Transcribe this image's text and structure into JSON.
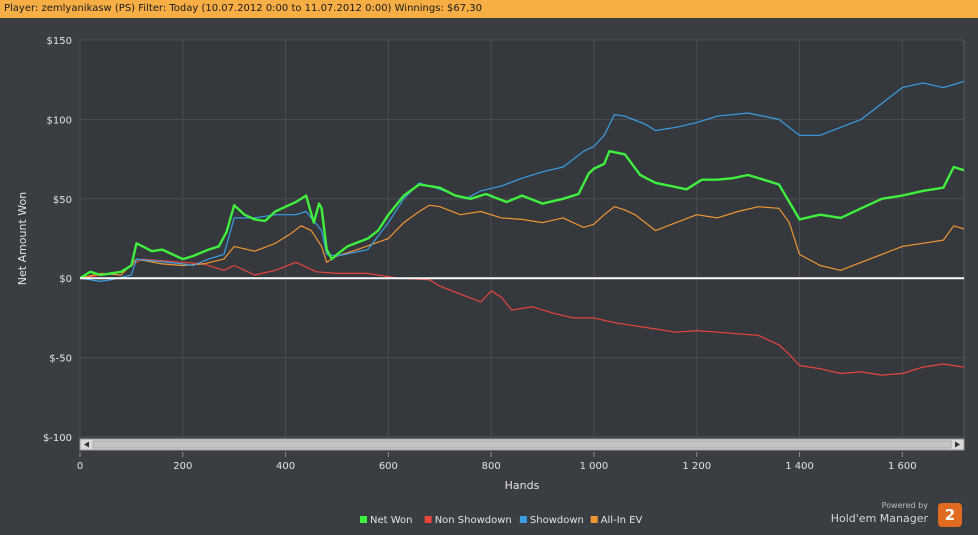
{
  "header": {
    "title": "Player: zemlyanikasw (PS) Filter: Today (10.07.2012 0:00 to 11.07.2012 0:00) Winnings: $67,30"
  },
  "branding": {
    "powered_by": "Powered by",
    "product": "Hold'em Manager",
    "badge": "2"
  },
  "colors": {
    "background": "#3a3d41",
    "plot_background": "#35383c",
    "grid": "#4a4e53",
    "zero_line": "#ffffff",
    "title_bar": "#f6ae45"
  },
  "chart_data": {
    "type": "line",
    "xlabel": "Hands",
    "ylabel": "Net Amount Won",
    "xlim": [
      0,
      1720
    ],
    "ylim": [
      -100,
      150
    ],
    "x_ticks": [
      0,
      200,
      400,
      600,
      800,
      1000,
      1200,
      1400,
      1600
    ],
    "x_tick_labels": [
      "0",
      "200",
      "400",
      "600",
      "800",
      "1 000",
      "1 200",
      "1 400",
      "1 600"
    ],
    "y_ticks": [
      150,
      100,
      50,
      0,
      -50,
      -100
    ],
    "y_tick_labels": [
      "$150",
      "$100",
      "$50",
      "$0",
      "$-50",
      "$-100"
    ],
    "grid": true,
    "legend_position": "bottom-center",
    "series": [
      {
        "name": "Net Won",
        "color": "#3ff03f",
        "x": [
          0,
          20,
          40,
          60,
          80,
          100,
          110,
          140,
          160,
          200,
          220,
          250,
          270,
          285,
          300,
          320,
          340,
          360,
          380,
          400,
          420,
          440,
          455,
          465,
          470,
          480,
          490,
          500,
          520,
          560,
          580,
          600,
          630,
          660,
          700,
          730,
          760,
          790,
          830,
          860,
          900,
          940,
          970,
          990,
          1000,
          1020,
          1030,
          1060,
          1090,
          1120,
          1150,
          1180,
          1210,
          1240,
          1270,
          1300,
          1330,
          1360,
          1380,
          1400,
          1440,
          1480,
          1520,
          1560,
          1600,
          1640,
          1680,
          1700,
          1720
        ],
        "y": [
          0,
          4,
          2,
          3,
          4,
          8,
          22,
          17,
          18,
          12,
          14,
          18,
          20,
          29,
          46,
          40,
          37,
          36,
          42,
          45,
          48,
          52,
          35,
          47,
          44,
          18,
          12,
          15,
          20,
          25,
          30,
          40,
          52,
          59,
          57,
          52,
          50,
          53,
          48,
          52,
          47,
          50,
          53,
          66,
          69,
          72,
          80,
          78,
          65,
          60,
          58,
          56,
          62,
          62,
          63,
          65,
          62,
          59,
          48,
          37,
          40,
          38,
          44,
          50,
          52,
          55,
          57,
          70,
          68
        ]
      },
      {
        "name": "Non Showdown",
        "color": "#e8453c",
        "x": [
          0,
          40,
          80,
          100,
          120,
          160,
          200,
          240,
          280,
          300,
          340,
          380,
          420,
          460,
          500,
          560,
          620,
          680,
          700,
          740,
          780,
          800,
          820,
          840,
          880,
          920,
          960,
          1000,
          1040,
          1080,
          1120,
          1160,
          1200,
          1240,
          1280,
          1320,
          1360,
          1380,
          1400,
          1440,
          1480,
          1520,
          1560,
          1600,
          1640,
          1680,
          1720
        ],
        "y": [
          0,
          2,
          4,
          8,
          12,
          11,
          10,
          9,
          5,
          8,
          2,
          5,
          10,
          4,
          3,
          3,
          0,
          -1,
          -5,
          -10,
          -15,
          -8,
          -12,
          -20,
          -18,
          -22,
          -25,
          -25,
          -28,
          -30,
          -32,
          -34,
          -33,
          -34,
          -35,
          -36,
          -42,
          -48,
          -55,
          -57,
          -60,
          -59,
          -61,
          -60,
          -56,
          -54,
          -56
        ]
      },
      {
        "name": "Showdown",
        "color": "#3a9ee4",
        "x": [
          0,
          40,
          60,
          100,
          110,
          200,
          220,
          250,
          280,
          300,
          340,
          380,
          420,
          440,
          470,
          480,
          500,
          560,
          600,
          630,
          660,
          700,
          750,
          780,
          820,
          860,
          900,
          940,
          960,
          980,
          1000,
          1020,
          1040,
          1060,
          1100,
          1120,
          1160,
          1200,
          1240,
          1300,
          1360,
          1400,
          1440,
          1480,
          1520,
          1560,
          1600,
          1640,
          1680,
          1700,
          1720
        ],
        "y": [
          0,
          -2,
          -1,
          2,
          12,
          9,
          8,
          12,
          15,
          38,
          38,
          40,
          40,
          42,
          30,
          15,
          14,
          18,
          35,
          50,
          60,
          56,
          50,
          55,
          58,
          63,
          67,
          70,
          75,
          80,
          83,
          90,
          103,
          102,
          97,
          93,
          95,
          98,
          102,
          104,
          100,
          90,
          90,
          95,
          100,
          110,
          120,
          123,
          120,
          122,
          124
        ]
      },
      {
        "name": "All-In EV",
        "color": "#ef9632",
        "x": [
          0,
          40,
          80,
          110,
          160,
          200,
          240,
          280,
          300,
          340,
          380,
          410,
          430,
          450,
          470,
          480,
          500,
          540,
          600,
          630,
          660,
          680,
          700,
          740,
          780,
          820,
          860,
          900,
          940,
          980,
          1000,
          1020,
          1040,
          1060,
          1080,
          1120,
          1160,
          1200,
          1240,
          1280,
          1320,
          1360,
          1380,
          1400,
          1440,
          1480,
          1520,
          1560,
          1600,
          1640,
          1680,
          1700,
          1720
        ],
        "y": [
          0,
          3,
          2,
          12,
          9,
          8,
          9,
          12,
          20,
          17,
          22,
          28,
          33,
          30,
          20,
          10,
          14,
          18,
          25,
          35,
          42,
          46,
          45,
          40,
          42,
          38,
          37,
          35,
          38,
          32,
          34,
          40,
          45,
          43,
          40,
          30,
          35,
          40,
          38,
          42,
          45,
          44,
          35,
          15,
          8,
          5,
          10,
          15,
          20,
          22,
          24,
          33,
          31
        ]
      }
    ]
  }
}
